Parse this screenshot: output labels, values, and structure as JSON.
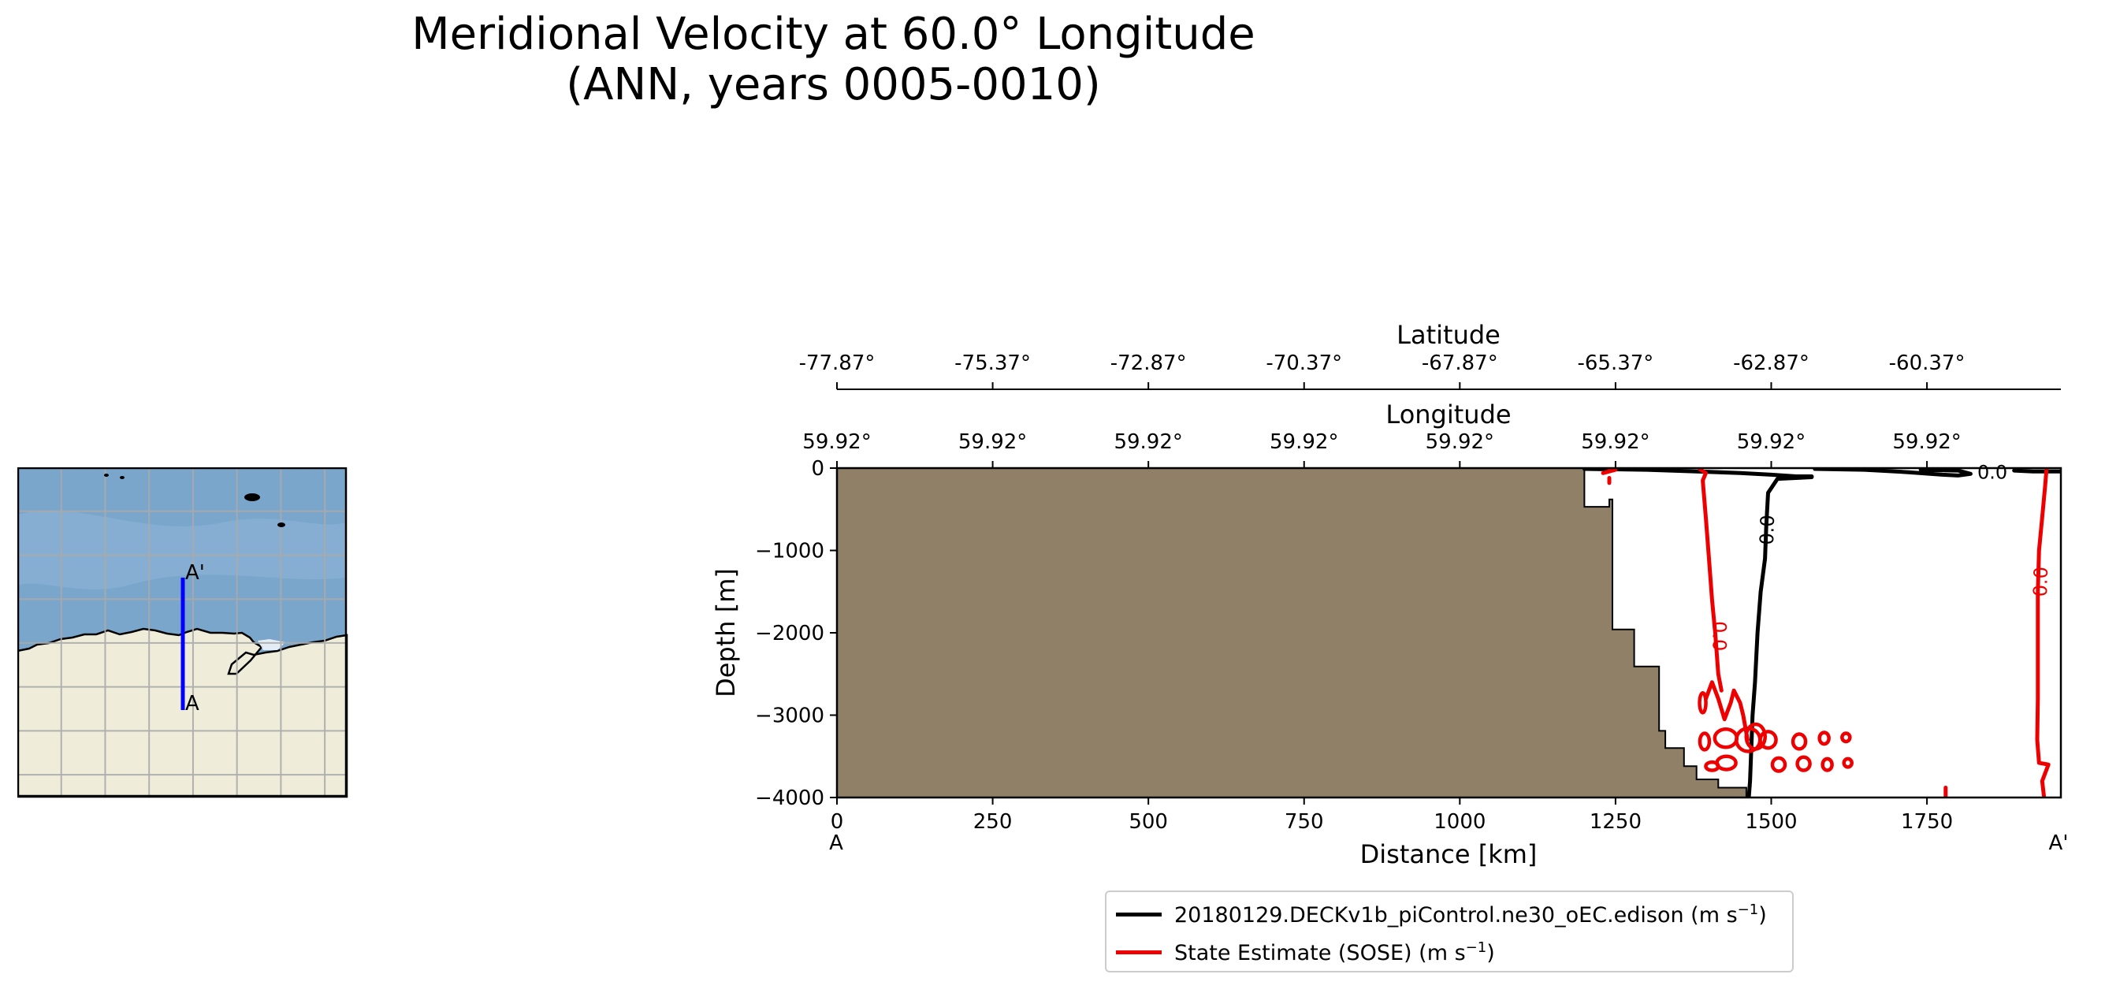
{
  "title": {
    "line1": "Meridional Velocity at 60.0° Longitude",
    "line2": "(ANN, years 0005-0010)"
  },
  "inset_map": {
    "start_label": "A",
    "end_label": "A'",
    "colors": {
      "ocean": "#7aa6cc",
      "land": "#efedda",
      "section": "#0000ff",
      "grid": "#aaaaaa"
    }
  },
  "chart_data": {
    "type": "line",
    "title": "Meridional Velocity at 60.0° Longitude (ANN, years 0005-0010)",
    "xlabel": "Distance [km]",
    "ylabel": "Depth [m]",
    "xlim": [
      0,
      1965
    ],
    "ylim": [
      -4000,
      0
    ],
    "x_ticks": [
      "0",
      "250",
      "500",
      "750",
      "1000",
      "1250",
      "1500",
      "1750"
    ],
    "y_ticks": [
      "0",
      "−1000",
      "−2000",
      "−3000",
      "−4000"
    ],
    "x_start_label": "A",
    "x_end_label": "A'",
    "top_axes": [
      {
        "label": "Latitude",
        "ticks": [
          "-77.87°",
          "-75.37°",
          "-72.87°",
          "-70.37°",
          "-67.87°",
          "-65.37°",
          "-62.87°",
          "-60.37°"
        ]
      },
      {
        "label": "Longitude",
        "ticks": [
          "59.92°",
          "59.92°",
          "59.92°",
          "59.92°",
          "59.92°",
          "59.92°",
          "59.92°",
          "59.92°"
        ]
      }
    ],
    "bathymetry": {
      "color": "#8f8067",
      "points": [
        [
          0,
          0
        ],
        [
          1200,
          0
        ],
        [
          1200,
          -470
        ],
        [
          1240,
          -470
        ],
        [
          1240,
          -380
        ],
        [
          1245,
          -380
        ],
        [
          1245,
          -1960
        ],
        [
          1280,
          -1960
        ],
        [
          1280,
          -2410
        ],
        [
          1320,
          -2410
        ],
        [
          1320,
          -3190
        ],
        [
          1330,
          -3190
        ],
        [
          1330,
          -3400
        ],
        [
          1360,
          -3400
        ],
        [
          1360,
          -3620
        ],
        [
          1380,
          -3620
        ],
        [
          1380,
          -3780
        ],
        [
          1415,
          -3780
        ],
        [
          1415,
          -3880
        ],
        [
          1460,
          -3880
        ],
        [
          1460,
          -4000
        ],
        [
          0,
          -4000
        ]
      ]
    },
    "series": [
      {
        "name": "20180129.DECKv1b_piControl.ne30_oEC.edison",
        "unit": "m s",
        "unit_exp": "−1",
        "color": "#000000",
        "contour_level_labels": [
          {
            "text": "0.0",
            "x": 1495,
            "y": -750,
            "rotate": -88
          },
          {
            "text": "0.0",
            "x": 1855,
            "y": -60,
            "rotate": 0
          }
        ],
        "contours": [
          [
            [
              1200,
              -10
            ],
            [
              1300,
              -20
            ],
            [
              1380,
              -40
            ],
            [
              1450,
              -60
            ],
            [
              1500,
              -80
            ],
            [
              1540,
              -100
            ],
            [
              1565,
              -100
            ]
          ],
          [
            [
              1565,
              -110
            ],
            [
              1510,
              -130
            ],
            [
              1495,
              -300
            ],
            [
              1492,
              -700
            ],
            [
              1490,
              -1100
            ],
            [
              1483,
              -1500
            ],
            [
              1478,
              -2000
            ],
            [
              1474,
              -2600
            ],
            [
              1470,
              -3000
            ],
            [
              1468,
              -3400
            ],
            [
              1466,
              -3800
            ],
            [
              1464,
              -4000
            ]
          ],
          [
            [
              1570,
              -10
            ],
            [
              1650,
              -20
            ],
            [
              1720,
              -50
            ],
            [
              1775,
              -80
            ],
            [
              1800,
              -90
            ],
            [
              1820,
              -70
            ],
            [
              1800,
              -30
            ],
            [
              1740,
              -20
            ]
          ],
          [
            [
              1890,
              -30
            ],
            [
              1920,
              -40
            ],
            [
              1965,
              -40
            ]
          ]
        ]
      },
      {
        "name": "State Estimate (SOSE)",
        "unit": "m s",
        "unit_exp": "−1",
        "color": "#ee0000",
        "contour_level_labels": [
          {
            "text": "0.0",
            "x": 1415,
            "y": -2040,
            "rotate": 90
          },
          {
            "text": "0.0",
            "x": 1934,
            "y": -1380,
            "rotate": -88
          }
        ],
        "contours": [
          [
            [
              1240,
              -10
            ],
            [
              1250,
              -20
            ],
            [
              1230,
              -60
            ]
          ],
          [
            [
              1385,
              -10
            ],
            [
              1395,
              -60
            ],
            [
              1390,
              -150
            ],
            [
              1395,
              -600
            ],
            [
              1400,
              -1100
            ],
            [
              1405,
              -1600
            ],
            [
              1410,
              -2000
            ],
            [
              1415,
              -2500
            ],
            [
              1420,
              -2700
            ]
          ],
          [
            [
              1395,
              -2800
            ],
            [
              1405,
              -2600
            ],
            [
              1415,
              -2800
            ],
            [
              1425,
              -3050
            ],
            [
              1435,
              -2850
            ],
            [
              1440,
              -2700
            ],
            [
              1450,
              -2850
            ],
            [
              1455,
              -3000
            ],
            [
              1462,
              -3300
            ]
          ],
          [
            [
              1942,
              -10
            ],
            [
              1940,
              -200
            ],
            [
              1935,
              -600
            ],
            [
              1930,
              -1000
            ],
            [
              1928,
              -1500
            ],
            [
              1928,
              -2200
            ],
            [
              1928,
              -2800
            ],
            [
              1927,
              -3300
            ],
            [
              1930,
              -3580
            ],
            [
              1945,
              -3600
            ],
            [
              1935,
              -3800
            ],
            [
              1938,
              -4000
            ]
          ],
          [
            [
              1780,
              -3880
            ],
            [
              1780,
              -4000
            ]
          ],
          [
            [
              1240,
              -120
            ],
            [
              1240,
              -180
            ]
          ]
        ],
        "ellipses": [
          {
            "x": 1390,
            "y": -2850,
            "rx": 4,
            "ry": 120
          },
          {
            "x": 1393,
            "y": -3320,
            "rx": 6,
            "ry": 100
          },
          {
            "x": 1427,
            "y": -3280,
            "rx": 14,
            "ry": 110
          },
          {
            "x": 1463,
            "y": -3300,
            "rx": 15,
            "ry": 140
          },
          {
            "x": 1428,
            "y": -3580,
            "rx": 12,
            "ry": 80
          },
          {
            "x": 1405,
            "y": -3620,
            "rx": 8,
            "ry": 50
          },
          {
            "x": 1495,
            "y": -3300,
            "rx": 10,
            "ry": 100
          },
          {
            "x": 1512,
            "y": -3600,
            "rx": 8,
            "ry": 80
          },
          {
            "x": 1545,
            "y": -3320,
            "rx": 8,
            "ry": 90
          },
          {
            "x": 1552,
            "y": -3590,
            "rx": 8,
            "ry": 80
          },
          {
            "x": 1585,
            "y": -3280,
            "rx": 6,
            "ry": 70
          },
          {
            "x": 1590,
            "y": -3600,
            "rx": 6,
            "ry": 70
          },
          {
            "x": 1620,
            "y": -3270,
            "rx": 5,
            "ry": 50
          },
          {
            "x": 1623,
            "y": -3580,
            "rx": 5,
            "ry": 50
          },
          {
            "x": 1475,
            "y": -3260,
            "rx": 12,
            "ry": 150
          }
        ]
      }
    ]
  }
}
